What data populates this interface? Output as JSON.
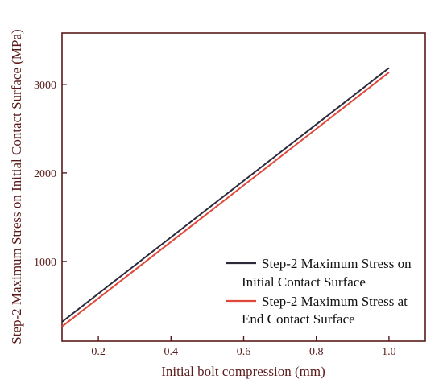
{
  "chart_data": {
    "type": "line",
    "xlabel": "Initial bolt compression (mm)",
    "ylabel": "Step-2 Maximum Stress on Initial Contact Surface (MPa)",
    "xlim": [
      0.1,
      1.1
    ],
    "ylim": [
      100,
      3580
    ],
    "xticks": [
      0.2,
      0.4,
      0.6,
      0.8,
      1.0
    ],
    "xtick_labels": [
      "0.2",
      "0.4",
      "0.6",
      "0.8",
      "1.0"
    ],
    "yticks": [
      1000,
      2000,
      3000
    ],
    "ytick_labels": [
      "1000",
      "2000",
      "3000"
    ],
    "grid": false,
    "legend_position": "bottom-right",
    "series": [
      {
        "name_lines": [
          "Step-2 Maximum Stress on",
          "Initial Contact Surface"
        ],
        "color": "#2b2b3b",
        "x": [
          0.1,
          1.0
        ],
        "y": [
          318,
          3185
        ]
      },
      {
        "name_lines": [
          "Step-2 Maximum Stress at",
          "End Contact Surface"
        ],
        "color": "#e0483a",
        "x": [
          0.1,
          1.0
        ],
        "y": [
          265,
          3135
        ]
      }
    ]
  },
  "colors": {
    "axis": "#5a1a1a"
  }
}
